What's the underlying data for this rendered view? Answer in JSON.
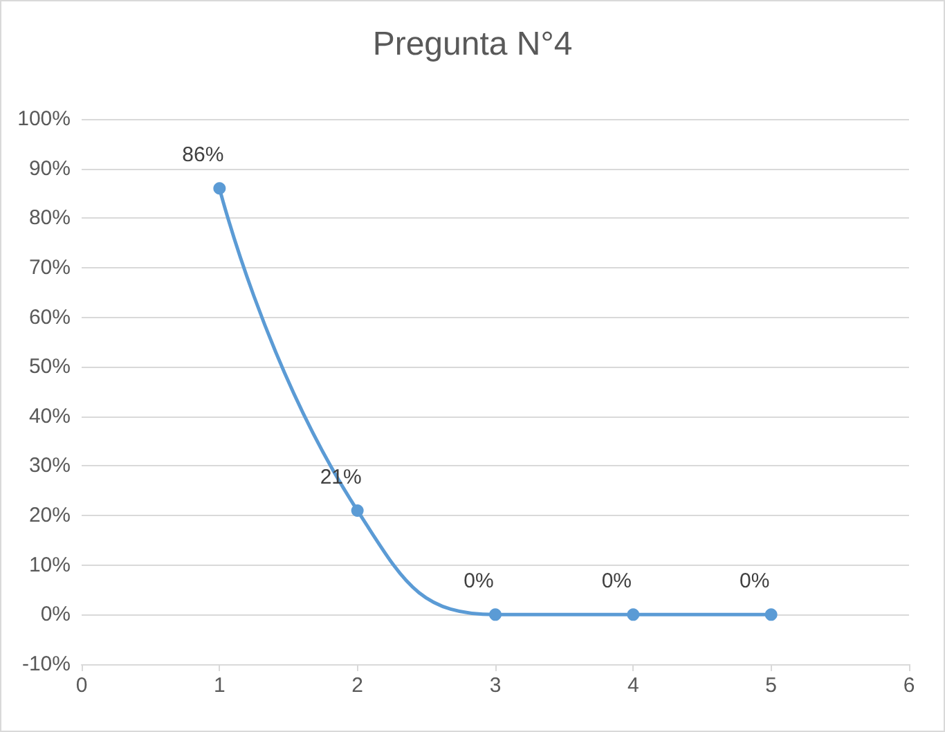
{
  "chart_data": {
    "type": "line",
    "title": "Pregunta N°4",
    "x": [
      1,
      2,
      3,
      4,
      5
    ],
    "series": [
      {
        "color": "#5b9bd5",
        "values": [
          86,
          21,
          0,
          0,
          0
        ],
        "value_labels": [
          "86%",
          "21%",
          "0%",
          "0%",
          "0%"
        ]
      }
    ],
    "xlim": [
      0,
      6
    ],
    "xticks": [
      0,
      1,
      2,
      3,
      4,
      5,
      6
    ],
    "ylim": [
      -10,
      100
    ],
    "yticks": [
      {
        "value": -10,
        "label": "-10%"
      },
      {
        "value": 0,
        "label": "0%"
      },
      {
        "value": 10,
        "label": "10%"
      },
      {
        "value": 20,
        "label": "20%"
      },
      {
        "value": 30,
        "label": "30%"
      },
      {
        "value": 40,
        "label": "40%"
      },
      {
        "value": 50,
        "label": "50%"
      },
      {
        "value": 60,
        "label": "60%"
      },
      {
        "value": 70,
        "label": "70%"
      },
      {
        "value": 80,
        "label": "80%"
      },
      {
        "value": 90,
        "label": "90%"
      },
      {
        "value": 100,
        "label": "100%"
      }
    ],
    "grid": "y",
    "marker": "circle",
    "line_style": "solid"
  }
}
